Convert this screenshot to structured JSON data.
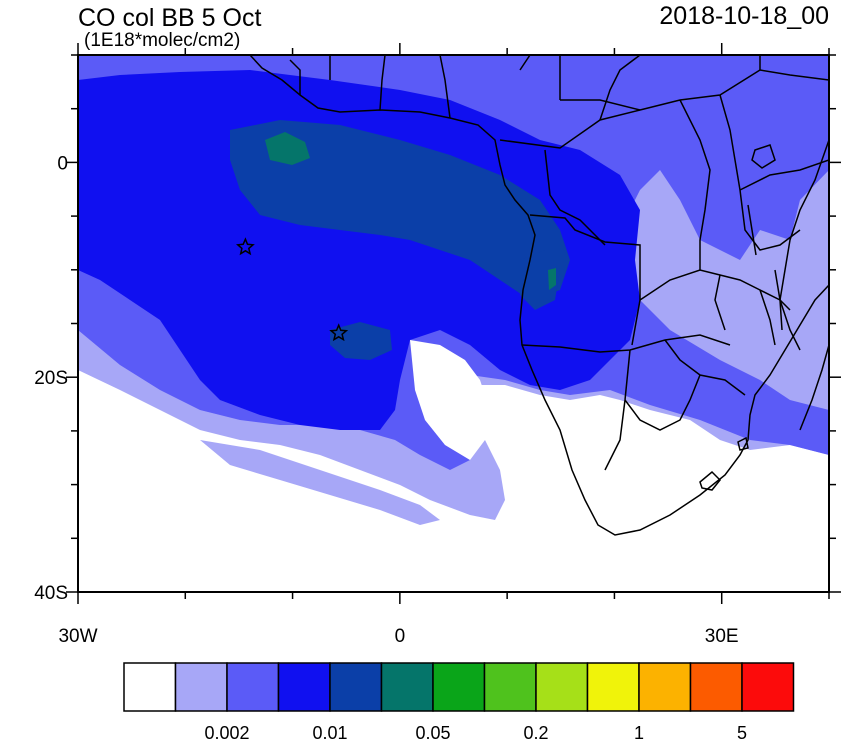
{
  "title": {
    "main": "CO col BB 5 Oct",
    "units": "(1E18*molec/cm2)",
    "datetime": "2018-10-18_00"
  },
  "axes": {
    "y_ticks": [
      {
        "lat": 0,
        "label": "0"
      },
      {
        "lat": -20,
        "label": "20S"
      },
      {
        "lat": -40,
        "label": "40S"
      }
    ],
    "x_ticks": [
      {
        "lon": -30,
        "label": "30W"
      },
      {
        "lon": 0,
        "label": "0"
      },
      {
        "lon": 30,
        "label": "30E"
      }
    ],
    "lon_range": [
      -30,
      40
    ],
    "lat_range": [
      -40,
      10
    ]
  },
  "colorbar": {
    "colors": [
      "#ffffff",
      "#a7a7f7",
      "#5b5bf7",
      "#1010f0",
      "#0b3fa8",
      "#05756a",
      "#0aa519",
      "#4fc21d",
      "#a6e018",
      "#f0f30a",
      "#fcb200",
      "#fc5b00",
      "#fc0b0b"
    ],
    "labels": [
      {
        "after_box": 2,
        "text": "0.002"
      },
      {
        "after_box": 4,
        "text": "0.01"
      },
      {
        "after_box": 6,
        "text": "0.05"
      },
      {
        "after_box": 8,
        "text": "0.2"
      },
      {
        "after_box": 10,
        "text": "1"
      },
      {
        "after_box": 12,
        "text": "5"
      }
    ]
  },
  "markers": [
    {
      "name": "star-marker-1",
      "lon": -14.4,
      "lat": -7.9
    },
    {
      "name": "star-marker-2",
      "lon": -5.7,
      "lat": -15.9
    }
  ]
}
